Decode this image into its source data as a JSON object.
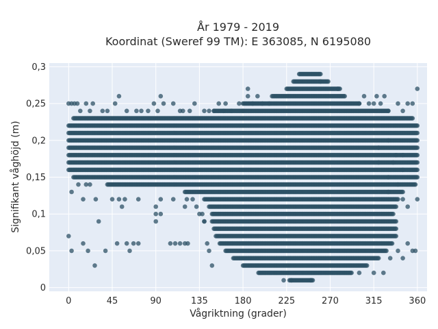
{
  "chart_data": {
    "type": "scatter",
    "title_line1": "År 1979 - 2019",
    "title_line2": "Koordinat (Sweref 99 TM): E 363085, N 6195080",
    "xlabel": "Vågriktning (grader)",
    "ylabel": "Signifikant våghöjd (m)",
    "xlim": [
      -20,
      370
    ],
    "ylim": [
      -0.005,
      0.305
    ],
    "xticks": [
      0,
      45,
      90,
      135,
      180,
      225,
      270,
      315,
      360
    ],
    "xtick_labels": [
      "0",
      "45",
      "90",
      "135",
      "180",
      "225",
      "270",
      "315",
      "360"
    ],
    "yticks": [
      0,
      0.05,
      0.1,
      0.15,
      0.2,
      0.25,
      0.3
    ],
    "ytick_labels": [
      "0",
      "0,05",
      "0,1",
      "0,15",
      "0,2",
      "0,25",
      "0,3"
    ],
    "grid": true,
    "marker_color": "#2e5266",
    "background_color": "#e5ecf6",
    "dense_bands": [
      {
        "y": 0.01,
        "x": [
          228,
          252
        ]
      },
      {
        "y": 0.02,
        "x": [
          196,
          292
        ]
      },
      {
        "y": 0.03,
        "x": [
          180,
          308
        ]
      },
      {
        "y": 0.04,
        "x": [
          170,
          320
        ]
      },
      {
        "y": 0.05,
        "x": [
          162,
          328
        ]
      },
      {
        "y": 0.06,
        "x": [
          156,
          334
        ]
      },
      {
        "y": 0.07,
        "x": [
          152,
          338
        ]
      },
      {
        "y": 0.08,
        "x": [
          150,
          338
        ]
      },
      {
        "y": 0.09,
        "x": [
          148,
          338
        ]
      },
      {
        "y": 0.1,
        "x": [
          148,
          335
        ]
      },
      {
        "y": 0.11,
        "x": [
          145,
          338
        ]
      },
      {
        "y": 0.12,
        "x": [
          140,
          340
        ]
      },
      {
        "y": 0.13,
        "x": [
          120,
          345
        ]
      },
      {
        "y": 0.14,
        "x": [
          40,
          358
        ]
      },
      {
        "y": 0.15,
        "x": [
          5,
          360
        ]
      },
      {
        "y": 0.16,
        "x": [
          0,
          360
        ]
      },
      {
        "y": 0.17,
        "x": [
          0,
          360
        ]
      },
      {
        "y": 0.18,
        "x": [
          0,
          360
        ]
      },
      {
        "y": 0.19,
        "x": [
          0,
          360
        ]
      },
      {
        "y": 0.2,
        "x": [
          0,
          360
        ]
      },
      {
        "y": 0.21,
        "x": [
          0,
          360
        ]
      },
      {
        "y": 0.22,
        "x": [
          0,
          360
        ]
      },
      {
        "y": 0.23,
        "x": [
          5,
          355
        ]
      },
      {
        "y": 0.24,
        "x": [
          150,
          330
        ]
      },
      {
        "y": 0.25,
        "x": [
          180,
          300
        ]
      },
      {
        "y": 0.26,
        "x": [
          210,
          285
        ]
      },
      {
        "y": 0.27,
        "x": [
          225,
          280
        ]
      },
      {
        "y": 0.28,
        "x": [
          232,
          268
        ]
      },
      {
        "y": 0.29,
        "x": [
          238,
          260
        ]
      }
    ],
    "scattered_points": [
      [
        0,
        0.07
      ],
      [
        3,
        0.05
      ],
      [
        15,
        0.06
      ],
      [
        20,
        0.05
      ],
      [
        27,
        0.03
      ],
      [
        31,
        0.09
      ],
      [
        38,
        0.05
      ],
      [
        50,
        0.06
      ],
      [
        60,
        0.06
      ],
      [
        63,
        0.05
      ],
      [
        67,
        0.06
      ],
      [
        72,
        0.06
      ],
      [
        90,
        0.09
      ],
      [
        90,
        0.1
      ],
      [
        95,
        0.1
      ],
      [
        105,
        0.06
      ],
      [
        110,
        0.06
      ],
      [
        115,
        0.06
      ],
      [
        120,
        0.06
      ],
      [
        123,
        0.06
      ],
      [
        135,
        0.1
      ],
      [
        140,
        0.09
      ],
      [
        143,
        0.06
      ],
      [
        145,
        0.05
      ],
      [
        148,
        0.03
      ],
      [
        15,
        0.12
      ],
      [
        28,
        0.12
      ],
      [
        45,
        0.12
      ],
      [
        52,
        0.12
      ],
      [
        55,
        0.11
      ],
      [
        58,
        0.12
      ],
      [
        72,
        0.12
      ],
      [
        90,
        0.11
      ],
      [
        95,
        0.12
      ],
      [
        108,
        0.12
      ],
      [
        120,
        0.11
      ],
      [
        122,
        0.12
      ],
      [
        128,
        0.12
      ],
      [
        132,
        0.11
      ],
      [
        138,
        0.1
      ],
      [
        140,
        0.09
      ],
      [
        330,
        0.13
      ],
      [
        345,
        0.12
      ],
      [
        350,
        0.11
      ],
      [
        360,
        0.12
      ],
      [
        350,
        0.06
      ],
      [
        355,
        0.05
      ],
      [
        358,
        0.05
      ],
      [
        345,
        0.04
      ],
      [
        340,
        0.05
      ],
      [
        332,
        0.04
      ],
      [
        325,
        0.02
      ],
      [
        315,
        0.02
      ],
      [
        300,
        0.02
      ],
      [
        250,
        0.01
      ],
      [
        222,
        0.01
      ],
      [
        230,
        0.01
      ],
      [
        3,
        0.13
      ],
      [
        10,
        0.14
      ],
      [
        18,
        0.14
      ],
      [
        22,
        0.14
      ],
      [
        0,
        0.25
      ],
      [
        3,
        0.25
      ],
      [
        6,
        0.25
      ],
      [
        9,
        0.25
      ],
      [
        12,
        0.24
      ],
      [
        18,
        0.25
      ],
      [
        22,
        0.24
      ],
      [
        25,
        0.25
      ],
      [
        35,
        0.24
      ],
      [
        40,
        0.24
      ],
      [
        48,
        0.25
      ],
      [
        52,
        0.26
      ],
      [
        60,
        0.24
      ],
      [
        70,
        0.24
      ],
      [
        75,
        0.24
      ],
      [
        82,
        0.24
      ],
      [
        88,
        0.25
      ],
      [
        92,
        0.24
      ],
      [
        95,
        0.26
      ],
      [
        98,
        0.25
      ],
      [
        108,
        0.25
      ],
      [
        115,
        0.24
      ],
      [
        118,
        0.24
      ],
      [
        125,
        0.24
      ],
      [
        130,
        0.25
      ],
      [
        140,
        0.24
      ],
      [
        145,
        0.24
      ],
      [
        150,
        0.24
      ],
      [
        155,
        0.25
      ],
      [
        160,
        0.24
      ],
      [
        162,
        0.25
      ],
      [
        168,
        0.24
      ],
      [
        176,
        0.25
      ],
      [
        180,
        0.24
      ],
      [
        185,
        0.26
      ],
      [
        190,
        0.25
      ],
      [
        195,
        0.26
      ],
      [
        200,
        0.25
      ],
      [
        207,
        0.25
      ],
      [
        260,
        0.28
      ],
      [
        278,
        0.27
      ],
      [
        300,
        0.25
      ],
      [
        310,
        0.25
      ],
      [
        315,
        0.25
      ],
      [
        318,
        0.26
      ],
      [
        322,
        0.25
      ],
      [
        326,
        0.26
      ],
      [
        330,
        0.24
      ],
      [
        340,
        0.25
      ],
      [
        345,
        0.24
      ],
      [
        350,
        0.25
      ],
      [
        355,
        0.25
      ],
      [
        360,
        0.27
      ],
      [
        185,
        0.27
      ],
      [
        305,
        0.26
      ],
      [
        320,
        0.19
      ],
      [
        330,
        0.2
      ],
      [
        338,
        0.18
      ],
      [
        345,
        0.18
      ],
      [
        320,
        0.17
      ],
      [
        335,
        0.17
      ],
      [
        345,
        0.16
      ],
      [
        330,
        0.15
      ],
      [
        340,
        0.14
      ]
    ]
  }
}
